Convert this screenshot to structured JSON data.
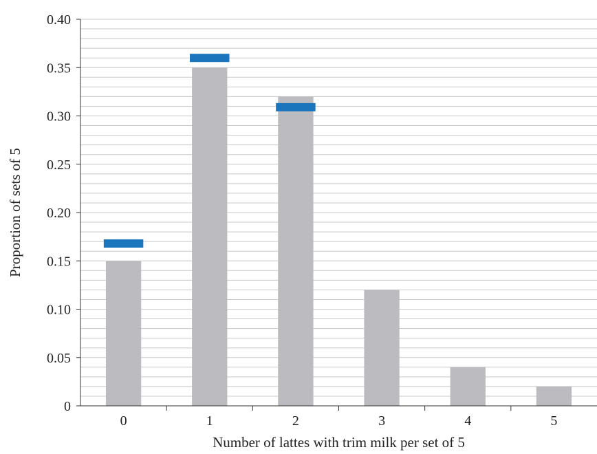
{
  "chart_data": {
    "type": "bar",
    "title": "",
    "xlabel": "Number of lattes with trim milk per set of 5",
    "ylabel": "Proportion of sets of 5",
    "categories": [
      "0",
      "1",
      "2",
      "3",
      "4",
      "5"
    ],
    "ylim": [
      0,
      0.4
    ],
    "yticks": [
      0,
      0.05,
      0.1,
      0.15,
      0.2,
      0.25,
      0.3,
      0.35,
      0.4
    ],
    "ytick_labels": [
      "0",
      "0.05",
      "0.10",
      "0.15",
      "0.20",
      "0.25",
      "0.30",
      "0.35",
      "0.40"
    ],
    "minor_grid_step": 0.01,
    "grid": true,
    "legend": "none",
    "series": [
      {
        "values": [
          0.15,
          0.35,
          0.32,
          0.12,
          0.04,
          0.02
        ],
        "color": "#bcbcc0",
        "mark": "bar"
      },
      {
        "values": [
          0.168,
          0.36,
          0.309,
          null,
          null,
          null
        ],
        "color": "#1b75bc",
        "mark": "horizontal-marker"
      }
    ]
  }
}
